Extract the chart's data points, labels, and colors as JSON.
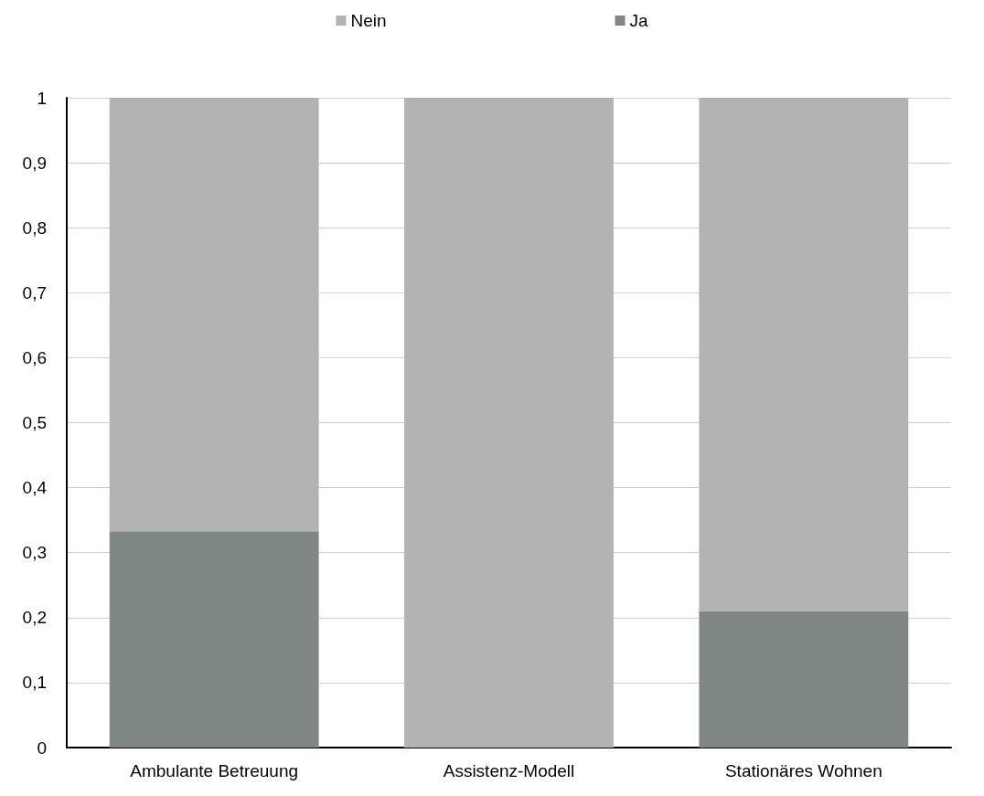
{
  "chart_data": {
    "type": "bar",
    "stacked": true,
    "categories": [
      "Ambulante Betreuung",
      "Assistenz-Modell",
      "Stationäres Wohnen"
    ],
    "series": [
      {
        "name": "Ja",
        "color": "#808884",
        "values": [
          0.333,
          0,
          0.21
        ]
      },
      {
        "name": "Nein",
        "color": "#b3b3b3",
        "values": [
          0.667,
          1,
          0.79
        ]
      }
    ],
    "ylim": [
      0,
      1
    ],
    "yticks": [
      0,
      {
        "value": 0.1,
        "label": "0,1"
      },
      {
        "value": 0.2,
        "label": "0,2"
      },
      {
        "value": 0.3,
        "label": "0,3"
      },
      {
        "value": 0.4,
        "label": "0,4"
      },
      {
        "value": 0.5,
        "label": "0,5"
      },
      {
        "value": 0.6,
        "label": "0,6"
      },
      {
        "value": 0.7,
        "label": "0,7"
      },
      {
        "value": 0.8,
        "label": "0,8"
      },
      {
        "value": 0.9,
        "label": "0,9"
      },
      1
    ],
    "grid": "y",
    "legend": "top"
  }
}
